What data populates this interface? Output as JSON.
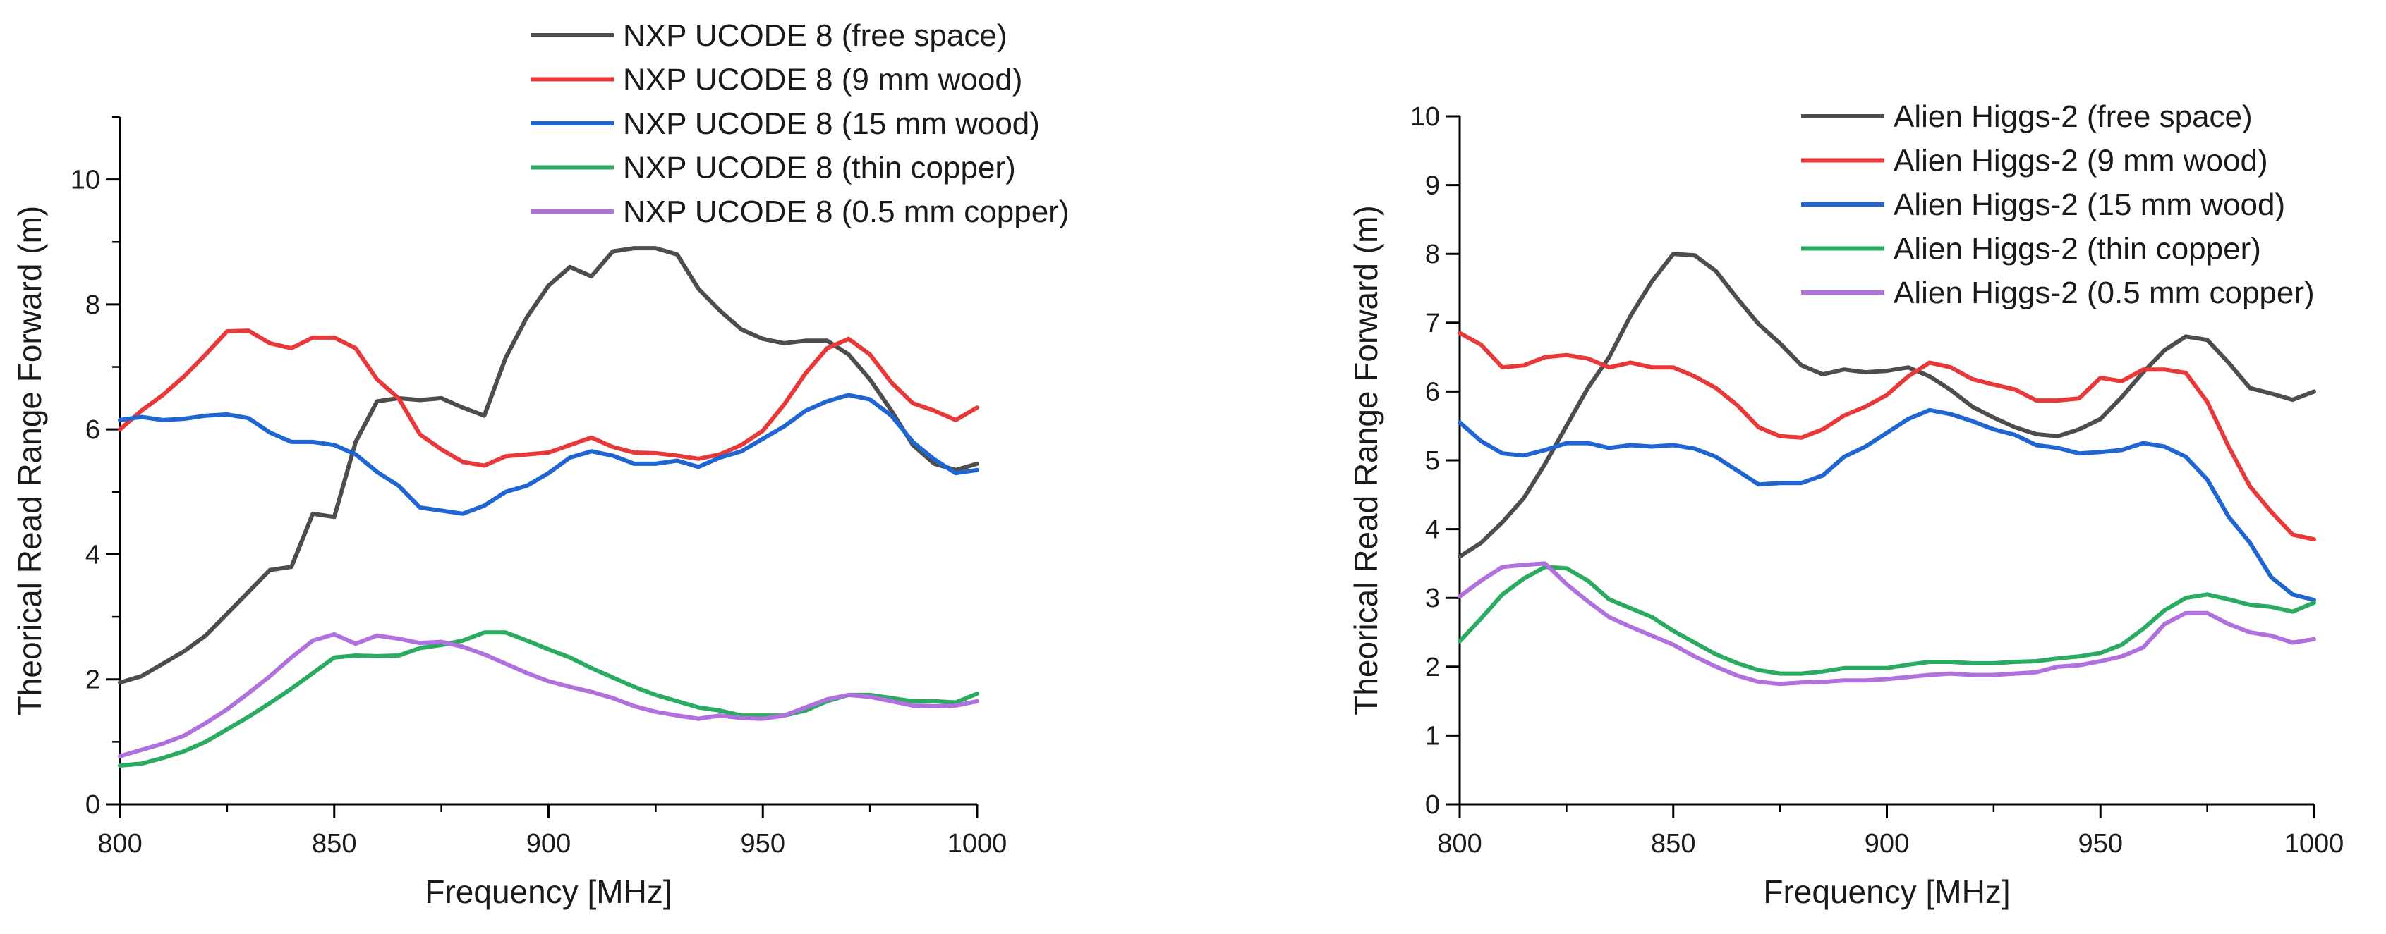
{
  "chart_data": [
    {
      "type": "line",
      "title": "",
      "xlabel": "Frequency [MHz]",
      "ylabel": "Theorical Read Range Forward (m)",
      "xlim": [
        800,
        1000
      ],
      "ylim": [
        0,
        11
      ],
      "xticks": [
        800,
        850,
        900,
        950,
        1000
      ],
      "yticks": [
        0,
        2,
        4,
        6,
        8,
        10
      ],
      "grid": false,
      "legend_position": "top-right",
      "x": [
        800,
        805,
        810,
        815,
        820,
        825,
        830,
        835,
        840,
        845,
        850,
        855,
        860,
        865,
        870,
        875,
        880,
        885,
        890,
        895,
        900,
        905,
        910,
        915,
        920,
        925,
        930,
        935,
        940,
        945,
        950,
        955,
        960,
        965,
        970,
        975,
        980,
        985,
        990,
        995,
        1000
      ],
      "series": [
        {
          "name": "NXP UCODE 8 (free space)",
          "color": "#4d4d4d",
          "values": [
            1.95,
            2.05,
            2.25,
            2.45,
            2.7,
            3.05,
            3.4,
            3.75,
            3.8,
            4.65,
            4.6,
            5.8,
            6.45,
            6.5,
            6.47,
            6.5,
            6.35,
            6.22,
            7.15,
            7.8,
            8.3,
            8.6,
            8.45,
            8.85,
            8.9,
            8.9,
            8.8,
            8.25,
            7.9,
            7.6,
            7.45,
            7.38,
            7.42,
            7.42,
            7.2,
            6.8,
            6.3,
            5.75,
            5.45,
            5.35,
            5.45
          ]
        },
        {
          "name": "NXP UCODE 8 (9 mm wood)",
          "color": "#e8393a",
          "values": [
            6.0,
            6.3,
            6.55,
            6.85,
            7.2,
            7.57,
            7.58,
            7.38,
            7.3,
            7.47,
            7.47,
            7.3,
            6.8,
            6.5,
            5.92,
            5.68,
            5.48,
            5.42,
            5.57,
            5.6,
            5.63,
            5.75,
            5.87,
            5.72,
            5.63,
            5.62,
            5.58,
            5.53,
            5.6,
            5.75,
            5.98,
            6.4,
            6.9,
            7.3,
            7.45,
            7.2,
            6.75,
            6.42,
            6.3,
            6.15,
            6.35
          ]
        },
        {
          "name": "NXP UCODE 8 (15 mm wood)",
          "color": "#1f66d2",
          "values": [
            6.15,
            6.2,
            6.15,
            6.17,
            6.22,
            6.24,
            6.18,
            5.95,
            5.8,
            5.8,
            5.75,
            5.6,
            5.32,
            5.1,
            4.75,
            4.7,
            4.65,
            4.78,
            5.0,
            5.1,
            5.3,
            5.55,
            5.65,
            5.58,
            5.45,
            5.45,
            5.5,
            5.4,
            5.55,
            5.65,
            5.85,
            6.05,
            6.3,
            6.45,
            6.55,
            6.48,
            6.22,
            5.8,
            5.52,
            5.3,
            5.35
          ]
        },
        {
          "name": "NXP UCODE 8 (thin copper)",
          "color": "#2bab62",
          "values": [
            0.62,
            0.65,
            0.74,
            0.85,
            1.0,
            1.2,
            1.4,
            1.62,
            1.85,
            2.1,
            2.35,
            2.38,
            2.37,
            2.38,
            2.5,
            2.55,
            2.62,
            2.75,
            2.75,
            2.62,
            2.48,
            2.35,
            2.18,
            2.03,
            1.88,
            1.75,
            1.65,
            1.55,
            1.5,
            1.42,
            1.42,
            1.42,
            1.5,
            1.65,
            1.75,
            1.75,
            1.7,
            1.65,
            1.65,
            1.63,
            1.77
          ]
        },
        {
          "name": "NXP UCODE 8 (0.5 mm copper)",
          "color": "#b070de",
          "values": [
            0.77,
            0.87,
            0.97,
            1.1,
            1.3,
            1.52,
            1.78,
            2.05,
            2.35,
            2.62,
            2.72,
            2.57,
            2.7,
            2.65,
            2.58,
            2.6,
            2.52,
            2.4,
            2.25,
            2.1,
            1.97,
            1.88,
            1.8,
            1.7,
            1.57,
            1.48,
            1.42,
            1.37,
            1.42,
            1.38,
            1.37,
            1.42,
            1.55,
            1.68,
            1.75,
            1.72,
            1.65,
            1.58,
            1.57,
            1.58,
            1.65
          ]
        }
      ]
    },
    {
      "type": "line",
      "title": "",
      "xlabel": "Frequency [MHz]",
      "ylabel": "Theorical Read Range Forward (m)",
      "xlim": [
        800,
        1000
      ],
      "ylim": [
        0,
        10
      ],
      "xticks": [
        800,
        850,
        900,
        950,
        1000
      ],
      "yticks": [
        0,
        1,
        2,
        3,
        4,
        5,
        6,
        7,
        8,
        9,
        10
      ],
      "grid": false,
      "legend_position": "top-right",
      "x": [
        800,
        805,
        810,
        815,
        820,
        825,
        830,
        835,
        840,
        845,
        850,
        855,
        860,
        865,
        870,
        875,
        880,
        885,
        890,
        895,
        900,
        905,
        910,
        915,
        920,
        925,
        930,
        935,
        940,
        945,
        950,
        955,
        960,
        965,
        970,
        975,
        980,
        985,
        990,
        995,
        1000
      ],
      "series": [
        {
          "name": "Alien Higgs-2 (free space)",
          "color": "#4d4d4d",
          "values": [
            3.6,
            3.8,
            4.1,
            4.45,
            4.95,
            5.5,
            6.05,
            6.5,
            7.1,
            7.6,
            8.0,
            7.98,
            7.75,
            7.35,
            6.98,
            6.7,
            6.38,
            6.25,
            6.32,
            6.28,
            6.3,
            6.35,
            6.22,
            6.02,
            5.78,
            5.62,
            5.48,
            5.38,
            5.35,
            5.45,
            5.6,
            5.92,
            6.28,
            6.6,
            6.8,
            6.75,
            6.42,
            6.05,
            5.97,
            5.88,
            6.0
          ]
        },
        {
          "name": "Alien Higgs-2 (9 mm wood)",
          "color": "#e8393a",
          "values": [
            6.85,
            6.68,
            6.35,
            6.38,
            6.5,
            6.53,
            6.48,
            6.35,
            6.42,
            6.35,
            6.35,
            6.22,
            6.05,
            5.8,
            5.48,
            5.35,
            5.33,
            5.45,
            5.65,
            5.78,
            5.95,
            6.22,
            6.42,
            6.35,
            6.18,
            6.1,
            6.03,
            5.87,
            5.87,
            5.9,
            6.2,
            6.15,
            6.32,
            6.32,
            6.27,
            5.85,
            5.2,
            4.62,
            4.25,
            3.92,
            3.85
          ]
        },
        {
          "name": "Alien Higgs-2 (15 mm wood)",
          "color": "#1f66d2",
          "values": [
            5.55,
            5.28,
            5.1,
            5.07,
            5.15,
            5.25,
            5.25,
            5.18,
            5.22,
            5.2,
            5.22,
            5.17,
            5.05,
            4.85,
            4.65,
            4.67,
            4.67,
            4.78,
            5.05,
            5.2,
            5.4,
            5.6,
            5.73,
            5.67,
            5.57,
            5.45,
            5.37,
            5.22,
            5.18,
            5.1,
            5.12,
            5.15,
            5.25,
            5.2,
            5.05,
            4.72,
            4.18,
            3.8,
            3.3,
            3.05,
            2.97
          ]
        },
        {
          "name": "Alien Higgs-2 (thin copper)",
          "color": "#2bab62",
          "values": [
            2.37,
            2.7,
            3.05,
            3.28,
            3.45,
            3.43,
            3.25,
            2.98,
            2.85,
            2.72,
            2.52,
            2.35,
            2.18,
            2.05,
            1.95,
            1.9,
            1.9,
            1.93,
            1.98,
            1.98,
            1.98,
            2.03,
            2.07,
            2.07,
            2.05,
            2.05,
            2.07,
            2.08,
            2.12,
            2.15,
            2.2,
            2.32,
            2.55,
            2.82,
            3.0,
            3.05,
            2.98,
            2.9,
            2.87,
            2.8,
            2.93
          ]
        },
        {
          "name": "Alien Higgs-2 (0.5 mm copper)",
          "color": "#b070de",
          "values": [
            3.02,
            3.25,
            3.45,
            3.48,
            3.5,
            3.2,
            2.95,
            2.72,
            2.58,
            2.45,
            2.32,
            2.15,
            2.0,
            1.87,
            1.78,
            1.75,
            1.77,
            1.78,
            1.8,
            1.8,
            1.82,
            1.85,
            1.88,
            1.9,
            1.88,
            1.88,
            1.9,
            1.92,
            2.0,
            2.02,
            2.08,
            2.15,
            2.28,
            2.62,
            2.78,
            2.78,
            2.62,
            2.5,
            2.45,
            2.35,
            2.4
          ]
        }
      ]
    }
  ]
}
